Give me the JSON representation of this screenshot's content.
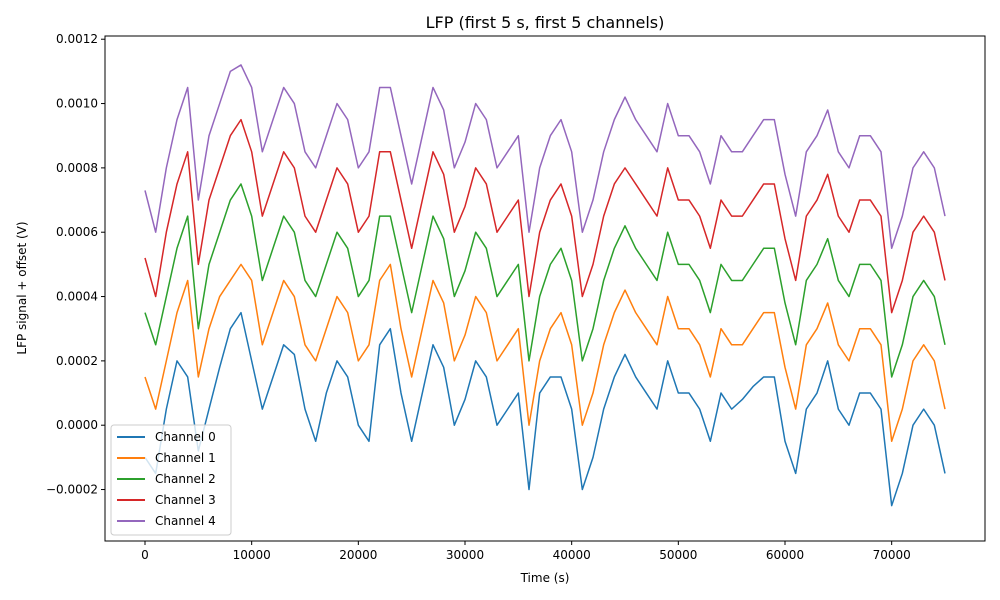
{
  "chart_data": {
    "type": "line",
    "title": "LFP (first 5 s, first 5 channels)",
    "xlabel": "Time (s)",
    "ylabel": "LFP signal + offset (V)",
    "xlim": [
      -3750,
      78750
    ],
    "ylim": [
      -0.00036,
      0.00121
    ],
    "x_ticks": [
      0,
      10000,
      20000,
      30000,
      40000,
      50000,
      60000,
      70000
    ],
    "x_tick_labels": [
      "0",
      "10000",
      "20000",
      "30000",
      "40000",
      "50000",
      "60000",
      "70000"
    ],
    "y_ticks": [
      -0.0002,
      0.0,
      0.0002,
      0.0004,
      0.0006,
      0.0008,
      0.001,
      0.0012
    ],
    "y_tick_labels": [
      "−0.0002",
      "0.0000",
      "0.0002",
      "0.0004",
      "0.0006",
      "0.0008",
      "0.0010",
      "0.0012"
    ],
    "grid": false,
    "legend_position": "lower-left",
    "x": [
      0,
      1000,
      2000,
      3000,
      4000,
      5000,
      6000,
      7000,
      8000,
      9000,
      10000,
      11000,
      12000,
      13000,
      14000,
      15000,
      16000,
      17000,
      18000,
      19000,
      20000,
      21000,
      22000,
      23000,
      24000,
      25000,
      26000,
      27000,
      28000,
      29000,
      30000,
      31000,
      32000,
      33000,
      34000,
      35000,
      36000,
      37000,
      38000,
      39000,
      40000,
      41000,
      42000,
      43000,
      44000,
      45000,
      46000,
      47000,
      48000,
      49000,
      50000,
      51000,
      52000,
      53000,
      54000,
      55000,
      56000,
      57000,
      58000,
      59000,
      60000,
      61000,
      62000,
      63000,
      64000,
      65000,
      66000,
      67000,
      68000,
      69000,
      70000,
      71000,
      72000,
      73000,
      74000,
      75000
    ],
    "series": [
      {
        "name": "Channel 0",
        "color": "#1f77b4",
        "values": [
          -0.0001,
          -0.00015,
          5e-05,
          0.0002,
          0.00015,
          -8e-05,
          5e-05,
          0.00018,
          0.0003,
          0.00035,
          0.0002,
          5e-05,
          0.00015,
          0.00025,
          0.00022,
          5e-05,
          -5e-05,
          0.0001,
          0.0002,
          0.00015,
          0.0,
          -5e-05,
          0.00025,
          0.0003,
          0.0001,
          -5e-05,
          0.0001,
          0.00025,
          0.00018,
          0.0,
          8e-05,
          0.0002,
          0.00015,
          0.0,
          5e-05,
          0.0001,
          -0.0002,
          0.0001,
          0.00015,
          0.00015,
          5e-05,
          -0.0002,
          -0.0001,
          5e-05,
          0.00015,
          0.00022,
          0.00015,
          0.0001,
          5e-05,
          0.0002,
          0.0001,
          0.0001,
          5e-05,
          -5e-05,
          0.0001,
          5e-05,
          8e-05,
          0.00012,
          0.00015,
          0.00015,
          -5e-05,
          -0.00015,
          5e-05,
          0.0001,
          0.0002,
          5e-05,
          0.0,
          0.0001,
          0.0001,
          5e-05,
          -0.00025,
          -0.00015,
          0.0,
          5e-05,
          0.0,
          -0.00015
        ]
      },
      {
        "name": "Channel 1",
        "color": "#ff7f0e",
        "values": [
          0.00015,
          5e-05,
          0.0002,
          0.00035,
          0.00045,
          0.00015,
          0.0003,
          0.0004,
          0.00045,
          0.0005,
          0.00045,
          0.00025,
          0.00035,
          0.00045,
          0.0004,
          0.00025,
          0.0002,
          0.0003,
          0.0004,
          0.00035,
          0.0002,
          0.00025,
          0.00045,
          0.0005,
          0.0003,
          0.00015,
          0.0003,
          0.00045,
          0.00038,
          0.0002,
          0.00028,
          0.0004,
          0.00035,
          0.0002,
          0.00025,
          0.0003,
          0.0,
          0.0002,
          0.0003,
          0.00035,
          0.00025,
          0.0,
          0.0001,
          0.00025,
          0.00035,
          0.00042,
          0.00035,
          0.0003,
          0.00025,
          0.0004,
          0.0003,
          0.0003,
          0.00025,
          0.00015,
          0.0003,
          0.00025,
          0.00025,
          0.0003,
          0.00035,
          0.00035,
          0.00018,
          5e-05,
          0.00025,
          0.0003,
          0.00038,
          0.00025,
          0.0002,
          0.0003,
          0.0003,
          0.00025,
          -5e-05,
          5e-05,
          0.0002,
          0.00025,
          0.0002,
          5e-05
        ]
      },
      {
        "name": "Channel 2",
        "color": "#2ca02c",
        "values": [
          0.00035,
          0.00025,
          0.0004,
          0.00055,
          0.00065,
          0.0003,
          0.0005,
          0.0006,
          0.0007,
          0.00075,
          0.00065,
          0.00045,
          0.00055,
          0.00065,
          0.0006,
          0.00045,
          0.0004,
          0.0005,
          0.0006,
          0.00055,
          0.0004,
          0.00045,
          0.00065,
          0.00065,
          0.0005,
          0.00035,
          0.0005,
          0.00065,
          0.00058,
          0.0004,
          0.00048,
          0.0006,
          0.00055,
          0.0004,
          0.00045,
          0.0005,
          0.0002,
          0.0004,
          0.0005,
          0.00055,
          0.00045,
          0.0002,
          0.0003,
          0.00045,
          0.00055,
          0.00062,
          0.00055,
          0.0005,
          0.00045,
          0.0006,
          0.0005,
          0.0005,
          0.00045,
          0.00035,
          0.0005,
          0.00045,
          0.00045,
          0.0005,
          0.00055,
          0.00055,
          0.00038,
          0.00025,
          0.00045,
          0.0005,
          0.00058,
          0.00045,
          0.0004,
          0.0005,
          0.0005,
          0.00045,
          0.00015,
          0.00025,
          0.0004,
          0.00045,
          0.0004,
          0.00025
        ]
      },
      {
        "name": "Channel 3",
        "color": "#d62728",
        "values": [
          0.00052,
          0.0004,
          0.0006,
          0.00075,
          0.00085,
          0.0005,
          0.0007,
          0.0008,
          0.0009,
          0.00095,
          0.00085,
          0.00065,
          0.00075,
          0.00085,
          0.0008,
          0.00065,
          0.0006,
          0.0007,
          0.0008,
          0.00075,
          0.0006,
          0.00065,
          0.00085,
          0.00085,
          0.0007,
          0.00055,
          0.0007,
          0.00085,
          0.00078,
          0.0006,
          0.00068,
          0.0008,
          0.00075,
          0.0006,
          0.00065,
          0.0007,
          0.0004,
          0.0006,
          0.0007,
          0.00075,
          0.00065,
          0.0004,
          0.0005,
          0.00065,
          0.00075,
          0.0008,
          0.00075,
          0.0007,
          0.00065,
          0.0008,
          0.0007,
          0.0007,
          0.00065,
          0.00055,
          0.0007,
          0.00065,
          0.00065,
          0.0007,
          0.00075,
          0.00075,
          0.00058,
          0.00045,
          0.00065,
          0.0007,
          0.00078,
          0.00065,
          0.0006,
          0.0007,
          0.0007,
          0.00065,
          0.00035,
          0.00045,
          0.0006,
          0.00065,
          0.0006,
          0.00045
        ]
      },
      {
        "name": "Channel 4",
        "color": "#9467bd",
        "values": [
          0.00073,
          0.0006,
          0.0008,
          0.00095,
          0.00105,
          0.0007,
          0.0009,
          0.001,
          0.0011,
          0.00112,
          0.00105,
          0.00085,
          0.00095,
          0.00105,
          0.001,
          0.00085,
          0.0008,
          0.0009,
          0.001,
          0.00095,
          0.0008,
          0.00085,
          0.00105,
          0.00105,
          0.0009,
          0.00075,
          0.0009,
          0.00105,
          0.00098,
          0.0008,
          0.00088,
          0.001,
          0.00095,
          0.0008,
          0.00085,
          0.0009,
          0.0006,
          0.0008,
          0.0009,
          0.00095,
          0.00085,
          0.0006,
          0.0007,
          0.00085,
          0.00095,
          0.00102,
          0.00095,
          0.0009,
          0.00085,
          0.001,
          0.0009,
          0.0009,
          0.00085,
          0.00075,
          0.0009,
          0.00085,
          0.00085,
          0.0009,
          0.00095,
          0.00095,
          0.00078,
          0.00065,
          0.00085,
          0.0009,
          0.00098,
          0.00085,
          0.0008,
          0.0009,
          0.0009,
          0.00085,
          0.00055,
          0.00065,
          0.0008,
          0.00085,
          0.0008,
          0.00065
        ]
      }
    ]
  }
}
